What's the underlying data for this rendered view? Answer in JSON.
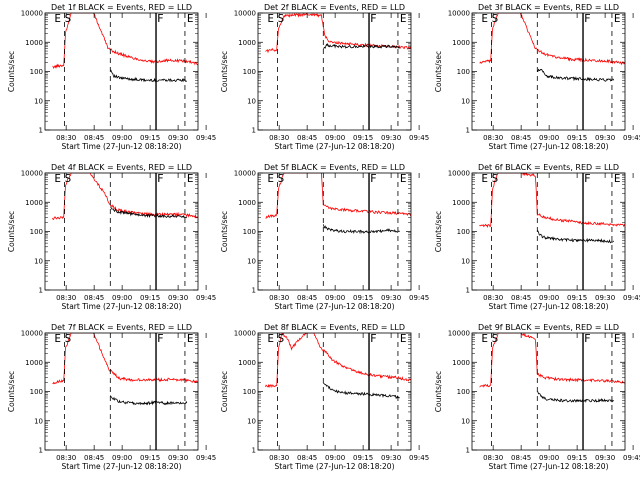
{
  "colors": {
    "events": "#000000",
    "lld": "#ff0000"
  },
  "shared": {
    "ylabel": "Counts/sec",
    "xlabel": "Start Time (27-Jun-12 08:18:20)",
    "xticks": [
      "08:30",
      "08:45",
      "09:00",
      "09:15",
      "09:30",
      "09:45"
    ],
    "yticks": [
      "1",
      "10",
      "100",
      "1000",
      "10000"
    ]
  },
  "chart_data": [
    {
      "type": "line",
      "title": "Det 1f BLACK = Events, RED = LLD",
      "xlabel": "Start Time (27-Jun-12 08:18:20)",
      "ylabel": "Counts/sec",
      "log_y": true,
      "ylim": [
        1,
        10000
      ],
      "x_minutes_after_start": [
        0,
        4,
        6,
        7,
        10,
        22,
        30,
        35,
        42,
        50,
        55,
        60,
        70,
        75,
        78
      ],
      "markers": [
        {
          "label": "E",
          "x": 0.5
        },
        {
          "label": "S",
          "x": 6.0
        },
        {
          "label": "F",
          "x": 55.5
        },
        {
          "label": "E",
          "x": 71.5
        }
      ],
      "vlines_dashed": [
        6.5,
        31.0,
        71.0
      ],
      "vline_solid": 55.5,
      "series": [
        {
          "color": "red",
          "x": [
            0,
            4,
            6,
            7,
            10,
            22,
            30,
            35,
            42,
            50,
            55,
            60,
            70,
            75,
            78
          ],
          "values": [
            140,
            160,
            160,
            2000,
            10000,
            10000,
            600,
            420,
            300,
            230,
            210,
            240,
            230,
            210,
            180
          ]
        },
        {
          "color": "black",
          "x": [
            31,
            33,
            36,
            42,
            50,
            55,
            60,
            66,
            70,
            72
          ],
          "values": [
            120,
            70,
            60,
            55,
            50,
            50,
            52,
            50,
            50,
            48
          ]
        }
      ]
    },
    {
      "type": "line",
      "title": "Det 2f BLACK = Events, RED = LLD",
      "xlabel": "Start Time (27-Jun-12 08:18:20)",
      "ylabel": "Counts/sec",
      "log_y": true,
      "ylim": [
        1,
        10000
      ],
      "markers": [
        {
          "label": "E",
          "x": 0.5
        },
        {
          "label": "S",
          "x": 6.0
        },
        {
          "label": "F",
          "x": 55.5
        },
        {
          "label": "E",
          "x": 71.5
        }
      ],
      "vlines_dashed": [
        6.5,
        31.0,
        71.0
      ],
      "vline_solid": 55.5,
      "series": [
        {
          "color": "red",
          "x": [
            0,
            4,
            6,
            7,
            10,
            25,
            30,
            32,
            35,
            42,
            50,
            55,
            62,
            70,
            78
          ],
          "values": [
            500,
            550,
            550,
            3000,
            8000,
            9000,
            8000,
            1500,
            1000,
            900,
            850,
            800,
            750,
            700,
            620
          ]
        },
        {
          "color": "black",
          "x": [
            31,
            33,
            36,
            42,
            50,
            55,
            60,
            66,
            70,
            72
          ],
          "values": [
            600,
            800,
            750,
            700,
            700,
            720,
            700,
            720,
            700,
            690
          ]
        }
      ]
    },
    {
      "type": "line",
      "title": "Det 3f BLACK = Events, RED = LLD",
      "xlabel": "Start Time (27-Jun-12 08:18:20)",
      "ylabel": "Counts/sec",
      "log_y": true,
      "ylim": [
        1,
        10000
      ],
      "markers": [
        {
          "label": "E",
          "x": 0.5
        },
        {
          "label": "S",
          "x": 6.0
        },
        {
          "label": "F",
          "x": 55.5
        },
        {
          "label": "E",
          "x": 71.5
        }
      ],
      "vlines_dashed": [
        6.5,
        31.0,
        71.0
      ],
      "vline_solid": 55.5,
      "series": [
        {
          "color": "red",
          "x": [
            0,
            4,
            6,
            7,
            10,
            22,
            30,
            35,
            42,
            50,
            55,
            60,
            70,
            75,
            78
          ],
          "values": [
            200,
            220,
            220,
            3000,
            10000,
            10000,
            600,
            400,
            300,
            260,
            250,
            240,
            220,
            200,
            190
          ]
        },
        {
          "color": "black",
          "x": [
            31,
            33,
            36,
            42,
            50,
            55,
            60,
            66,
            70,
            72
          ],
          "values": [
            100,
            120,
            70,
            60,
            58,
            55,
            55,
            52,
            50,
            50
          ]
        }
      ]
    },
    {
      "type": "line",
      "title": "Det 4f BLACK = Events, RED = LLD",
      "xlabel": "Start Time (27-Jun-12 08:18:20)",
      "ylabel": "Counts/sec",
      "log_y": true,
      "ylim": [
        1,
        10000
      ],
      "markers": [
        {
          "label": "E",
          "x": 0.5
        },
        {
          "label": "S",
          "x": 6.0
        },
        {
          "label": "F",
          "x": 55.5
        },
        {
          "label": "E",
          "x": 71.5
        }
      ],
      "vlines_dashed": [
        6.5,
        31.0,
        71.0
      ],
      "vline_solid": 55.5,
      "series": [
        {
          "color": "red",
          "x": [
            0,
            4,
            6,
            7,
            10,
            20,
            28,
            31,
            35,
            42,
            50,
            55,
            62,
            70,
            78
          ],
          "values": [
            280,
            300,
            300,
            4000,
            10000,
            10000,
            2000,
            800,
            550,
            450,
            400,
            380,
            380,
            380,
            320
          ]
        },
        {
          "color": "black",
          "x": [
            31,
            33,
            36,
            42,
            50,
            55,
            60,
            66,
            70,
            72
          ],
          "values": [
            700,
            550,
            450,
            400,
            350,
            340,
            330,
            330,
            320,
            320
          ]
        }
      ]
    },
    {
      "type": "line",
      "title": "Det 5f BLACK = Events, RED = LLD",
      "xlabel": "Start Time (27-Jun-12 08:18:20)",
      "ylabel": "Counts/sec",
      "log_y": true,
      "ylim": [
        1,
        10000
      ],
      "markers": [
        {
          "label": "E",
          "x": 0.5
        },
        {
          "label": "S",
          "x": 6.0
        },
        {
          "label": "F",
          "x": 55.5
        },
        {
          "label": "E",
          "x": 71.5
        }
      ],
      "vlines_dashed": [
        6.5,
        31.0,
        71.0
      ],
      "vline_solid": 55.5,
      "series": [
        {
          "color": "red",
          "x": [
            0,
            4,
            6,
            7,
            10,
            22,
            30,
            31,
            35,
            42,
            50,
            55,
            62,
            70,
            78
          ],
          "values": [
            300,
            350,
            350,
            3000,
            10000,
            10000,
            10000,
            800,
            600,
            550,
            500,
            480,
            450,
            430,
            380
          ]
        },
        {
          "color": "black",
          "x": [
            31,
            33,
            36,
            42,
            50,
            55,
            60,
            66,
            70,
            72
          ],
          "values": [
            160,
            130,
            110,
            100,
            100,
            95,
            100,
            110,
            100,
            100
          ]
        }
      ]
    },
    {
      "type": "line",
      "title": "Det 6f BLACK = Events, RED = LLD",
      "xlabel": "Start Time (27-Jun-12 08:18:20)",
      "ylabel": "Counts/sec",
      "log_y": true,
      "ylim": [
        1,
        10000
      ],
      "markers": [
        {
          "label": "E",
          "x": 0.5
        },
        {
          "label": "S",
          "x": 6.0
        },
        {
          "label": "F",
          "x": 55.5
        },
        {
          "label": "E",
          "x": 71.5
        }
      ],
      "vlines_dashed": [
        6.5,
        31.0,
        71.0
      ],
      "vline_solid": 55.5,
      "series": [
        {
          "color": "red",
          "x": [
            0,
            4,
            6,
            7,
            10,
            22,
            30,
            31,
            35,
            42,
            50,
            55,
            62,
            70,
            78
          ],
          "values": [
            150,
            160,
            160,
            3000,
            10000,
            10000,
            8000,
            400,
            300,
            250,
            220,
            200,
            190,
            180,
            160
          ]
        },
        {
          "color": "black",
          "x": [
            31,
            33,
            36,
            42,
            50,
            55,
            60,
            66,
            70,
            72
          ],
          "values": [
            100,
            70,
            60,
            55,
            50,
            50,
            50,
            48,
            45,
            45
          ]
        }
      ]
    },
    {
      "type": "line",
      "title": "Det 7f BLACK = Events, RED = LLD",
      "xlabel": "Start Time (27-Jun-12 08:18:20)",
      "ylabel": "Counts/sec",
      "log_y": true,
      "ylim": [
        1,
        10000
      ],
      "markers": [
        {
          "label": "E",
          "x": 0.5
        },
        {
          "label": "S",
          "x": 6.0
        },
        {
          "label": "F",
          "x": 55.5
        },
        {
          "label": "E",
          "x": 71.5
        }
      ],
      "vlines_dashed": [
        6.5,
        31.0,
        71.0
      ],
      "vline_solid": 55.5,
      "series": [
        {
          "color": "red",
          "x": [
            0,
            4,
            6,
            7,
            10,
            22,
            30,
            33,
            36,
            42,
            50,
            55,
            62,
            70,
            78
          ],
          "values": [
            200,
            220,
            220,
            3000,
            10000,
            10000,
            600,
            400,
            280,
            250,
            250,
            250,
            260,
            250,
            220
          ]
        },
        {
          "color": "black",
          "x": [
            31,
            33,
            36,
            42,
            50,
            55,
            60,
            66,
            70,
            72
          ],
          "values": [
            70,
            55,
            45,
            40,
            40,
            42,
            40,
            40,
            40,
            40
          ]
        }
      ]
    },
    {
      "type": "line",
      "title": "Det 8f BLACK = Events, RED = LLD",
      "xlabel": "Start Time (27-Jun-12 08:18:20)",
      "ylabel": "Counts/sec",
      "log_y": true,
      "ylim": [
        1,
        10000
      ],
      "markers": [
        {
          "label": "E",
          "x": 0.5
        },
        {
          "label": "S",
          "x": 6.0
        },
        {
          "label": "F",
          "x": 55.5
        },
        {
          "label": "E",
          "x": 71.5
        }
      ],
      "vlines_dashed": [
        6.5,
        31.0,
        71.0
      ],
      "vline_solid": 55.5,
      "series": [
        {
          "color": "red",
          "x": [
            0,
            4,
            6,
            7,
            9,
            12,
            14,
            18,
            22,
            26,
            28,
            30,
            33,
            36,
            42,
            50,
            55,
            62,
            70,
            78
          ],
          "values": [
            150,
            160,
            160,
            3000,
            10000,
            6000,
            3000,
            6000,
            10000,
            10000,
            5000,
            3000,
            2000,
            1200,
            700,
            450,
            380,
            330,
            300,
            240
          ]
        },
        {
          "color": "black",
          "x": [
            31,
            33,
            36,
            42,
            50,
            55,
            60,
            66,
            70,
            72
          ],
          "values": [
            200,
            150,
            110,
            90,
            85,
            80,
            75,
            70,
            65,
            60
          ]
        }
      ]
    },
    {
      "type": "line",
      "title": "Det 9f BLACK = Events, RED = LLD",
      "xlabel": "Start Time (27-Jun-12 08:18:20)",
      "ylabel": "Counts/sec",
      "log_y": true,
      "ylim": [
        1,
        10000
      ],
      "markers": [
        {
          "label": "E",
          "x": 0.5
        },
        {
          "label": "S",
          "x": 6.0
        },
        {
          "label": "F",
          "x": 55.5
        },
        {
          "label": "E",
          "x": 71.5
        }
      ],
      "vlines_dashed": [
        6.5,
        31.0,
        71.0
      ],
      "vline_solid": 55.5,
      "series": [
        {
          "color": "red",
          "x": [
            0,
            4,
            6,
            7,
            10,
            22,
            30,
            31,
            35,
            42,
            50,
            55,
            62,
            70,
            78
          ],
          "values": [
            150,
            160,
            160,
            3000,
            10000,
            10000,
            6000,
            400,
            300,
            260,
            250,
            250,
            240,
            230,
            200
          ]
        },
        {
          "color": "black",
          "x": [
            31,
            33,
            36,
            42,
            50,
            55,
            60,
            66,
            70,
            72
          ],
          "values": [
            100,
            70,
            55,
            50,
            48,
            50,
            48,
            50,
            48,
            48
          ]
        }
      ]
    }
  ]
}
